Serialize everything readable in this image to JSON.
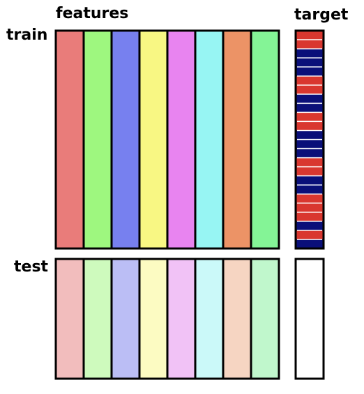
{
  "labels": {
    "features": "features",
    "target": "target",
    "train": "train",
    "test": "test"
  },
  "colors": {
    "outline": "#000000",
    "train_features": [
      "#e97c7a",
      "#9ef77f",
      "#7780ef",
      "#f8f783",
      "#e884f0",
      "#97f5f3",
      "#ec9366",
      "#84f496"
    ],
    "test_features": [
      "#f2bdbd",
      "#cefabd",
      "#bbbef5",
      "#fcfbc2",
      "#f1c2f6",
      "#cbf9f9",
      "#f6d5c2",
      "#c0f7cc"
    ],
    "target_red": "#d9372f",
    "target_blue": "#0a0f79",
    "target_separator": "#ffffff",
    "test_target": "#ffffff"
  },
  "train_target_pattern": [
    "red",
    "red",
    "blue",
    "blue",
    "blue",
    "red",
    "red",
    "blue",
    "blue",
    "red",
    "red",
    "blue",
    "blue",
    "blue",
    "red",
    "red",
    "blue",
    "blue",
    "red",
    "red",
    "red",
    "blue",
    "red",
    "blue"
  ]
}
